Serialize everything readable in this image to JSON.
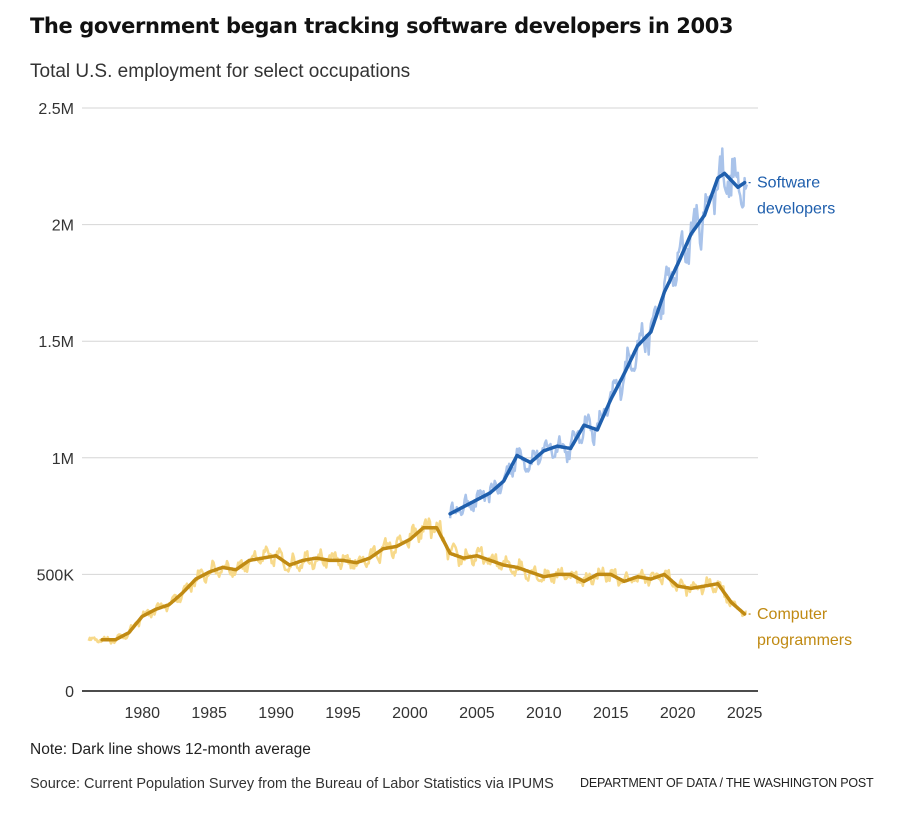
{
  "chart_data": {
    "type": "line",
    "title": "The government began tracking software developers in 2003",
    "subtitle": "Total U.S. employment for select occupations",
    "xlabel": "",
    "ylabel": "",
    "xlim": [
      1975.5,
      2026
    ],
    "ylim": [
      0,
      2500000
    ],
    "x_ticks": [
      1980,
      1985,
      1990,
      1995,
      2000,
      2005,
      2010,
      2015,
      2020,
      2025
    ],
    "x_tick_labels": [
      "1980",
      "1985",
      "1990",
      "1995",
      "2000",
      "2005",
      "2010",
      "2015",
      "2020",
      "2025"
    ],
    "y_ticks": [
      0,
      500000,
      1000000,
      1500000,
      2000000,
      2500000
    ],
    "y_tick_labels": [
      "0",
      "500K",
      "1M",
      "1.5M",
      "2M",
      "2.5M"
    ],
    "grid": true,
    "series": [
      {
        "name": "Software developers",
        "label_lines": [
          "Software",
          "developers"
        ],
        "color_dark": "#1f5fad",
        "color_light": "#a9c3ea",
        "start_year": 2003,
        "avg_x": [
          2003,
          2004,
          2005,
          2006,
          2007,
          2008,
          2009,
          2010,
          2011,
          2012,
          2013,
          2014,
          2015,
          2016,
          2017,
          2018,
          2019,
          2020,
          2021,
          2022,
          2023,
          2023.5,
          2024,
          2024.5,
          2025
        ],
        "avg_y": [
          760000,
          790000,
          820000,
          850000,
          900000,
          1010000,
          980000,
          1030000,
          1050000,
          1040000,
          1140000,
          1120000,
          1250000,
          1360000,
          1480000,
          1540000,
          1710000,
          1830000,
          1960000,
          2040000,
          2200000,
          2220000,
          2190000,
          2160000,
          2180000
        ]
      },
      {
        "name": "Computer programmers",
        "label_lines": [
          "Computer",
          "programmers"
        ],
        "color_dark": "#c08a13",
        "color_light": "#f7d98a",
        "start_year": 1976,
        "avg_x": [
          1977,
          1978,
          1979,
          1980,
          1981,
          1982,
          1983,
          1984,
          1985,
          1986,
          1987,
          1988,
          1989,
          1990,
          1991,
          1992,
          1993,
          1994,
          1995,
          1996,
          1997,
          1998,
          1999,
          2000,
          2001,
          2002,
          2003,
          2004,
          2005,
          2006,
          2007,
          2008,
          2009,
          2010,
          2011,
          2012,
          2013,
          2014,
          2015,
          2016,
          2017,
          2018,
          2019,
          2020,
          2021,
          2022,
          2023,
          2024,
          2025
        ],
        "avg_y": [
          220000,
          220000,
          250000,
          320000,
          350000,
          370000,
          420000,
          480000,
          510000,
          530000,
          520000,
          560000,
          570000,
          580000,
          540000,
          560000,
          570000,
          560000,
          560000,
          550000,
          570000,
          610000,
          620000,
          650000,
          700000,
          700000,
          590000,
          570000,
          580000,
          560000,
          540000,
          530000,
          510000,
          490000,
          500000,
          500000,
          470000,
          500000,
          500000,
          470000,
          490000,
          480000,
          500000,
          450000,
          440000,
          450000,
          460000,
          380000,
          330000
        ]
      }
    ],
    "note": "Note: Dark line shows 12-month average",
    "source": "Source: Current Population Survey from the Bureau of Labor Statistics via IPUMS",
    "credit": "DEPARTMENT OF DATA / THE WASHINGTON POST"
  }
}
